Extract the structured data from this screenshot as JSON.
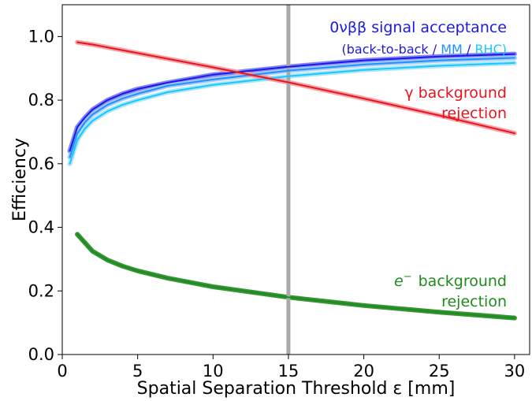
{
  "chart_data": {
    "type": "line",
    "xlabel": "Spatial Separation Threshold ε [mm]",
    "ylabel": "Efficiency",
    "xlim": [
      0,
      31
    ],
    "ylim": [
      0.0,
      1.1
    ],
    "xticks": [
      0,
      5,
      10,
      15,
      20,
      25,
      30
    ],
    "xtick_labels": [
      "0",
      "5",
      "10",
      "15",
      "20",
      "25",
      "30"
    ],
    "yticks": [
      0.0,
      0.2,
      0.4,
      0.6,
      0.8,
      1.0
    ],
    "ytick_labels": [
      "0.0",
      "0.2",
      "0.4",
      "0.6",
      "0.8",
      "1.0"
    ],
    "grid": false,
    "vertical_line": {
      "x": 15,
      "color": "#a9a9a9"
    },
    "series": [
      {
        "name": "back-to-back",
        "color": "#1a1ae6",
        "band_color": "#7878f0",
        "x": [
          0.5,
          1,
          1.5,
          2,
          3,
          4,
          5,
          7,
          10,
          15,
          20,
          25,
          30
        ],
        "y": [
          0.64,
          0.715,
          0.745,
          0.77,
          0.8,
          0.82,
          0.835,
          0.855,
          0.88,
          0.905,
          0.925,
          0.937,
          0.945
        ]
      },
      {
        "name": "MM",
        "color": "#1e90ff",
        "band_color": "#9dc6f5",
        "x": [
          0.5,
          1,
          1.5,
          2,
          3,
          4,
          5,
          7,
          10,
          15,
          20,
          25,
          30
        ],
        "y": [
          0.62,
          0.695,
          0.73,
          0.755,
          0.785,
          0.805,
          0.82,
          0.845,
          0.865,
          0.893,
          0.912,
          0.925,
          0.933
        ]
      },
      {
        "name": "RHC",
        "color": "#17c8ff",
        "band_color": "#a5e3f7",
        "x": [
          0.5,
          1,
          1.5,
          2,
          3,
          4,
          5,
          7,
          10,
          15,
          20,
          25,
          30
        ],
        "y": [
          0.6,
          0.675,
          0.71,
          0.735,
          0.765,
          0.785,
          0.8,
          0.825,
          0.848,
          0.875,
          0.895,
          0.908,
          0.917
        ]
      },
      {
        "name": "γ background rejection",
        "color": "#e8141e",
        "band_color": "#f29a9e",
        "x": [
          1,
          2,
          5,
          10,
          15,
          20,
          25,
          30
        ],
        "y": [
          0.982,
          0.975,
          0.948,
          0.903,
          0.856,
          0.805,
          0.752,
          0.696
        ]
      },
      {
        "name": "e⁻ background rejection",
        "color": "#1f8a1f",
        "band_color": "#1f8a1f",
        "x": [
          1,
          2,
          3,
          4,
          5,
          7,
          10,
          15,
          20,
          25,
          30
        ],
        "y": [
          0.378,
          0.325,
          0.297,
          0.278,
          0.263,
          0.24,
          0.213,
          0.18,
          0.154,
          0.133,
          0.115
        ]
      }
    ],
    "annotations": {
      "signal_title": "0νββ signal acceptance",
      "signal_open": "(back-to-back /",
      "signal_mm": "MM",
      "signal_slash": "/",
      "signal_rhc": "RHC)",
      "gamma_line1": "γ background",
      "gamma_line2": "rejection",
      "electron_line1_symbol": "e",
      "electron_line1_sup": "−",
      "electron_line1_text": "background",
      "electron_line2": "rejection"
    },
    "annotation_colors": {
      "signal_title": "#1a1ae6",
      "signal_open": "#1a1ae6",
      "signal_mm": "#1e90ff",
      "signal_slash": "#1a1ae6",
      "signal_rhc": "#17c8ff",
      "gamma": "#e8141e",
      "electron": "#1f8a1f"
    }
  }
}
